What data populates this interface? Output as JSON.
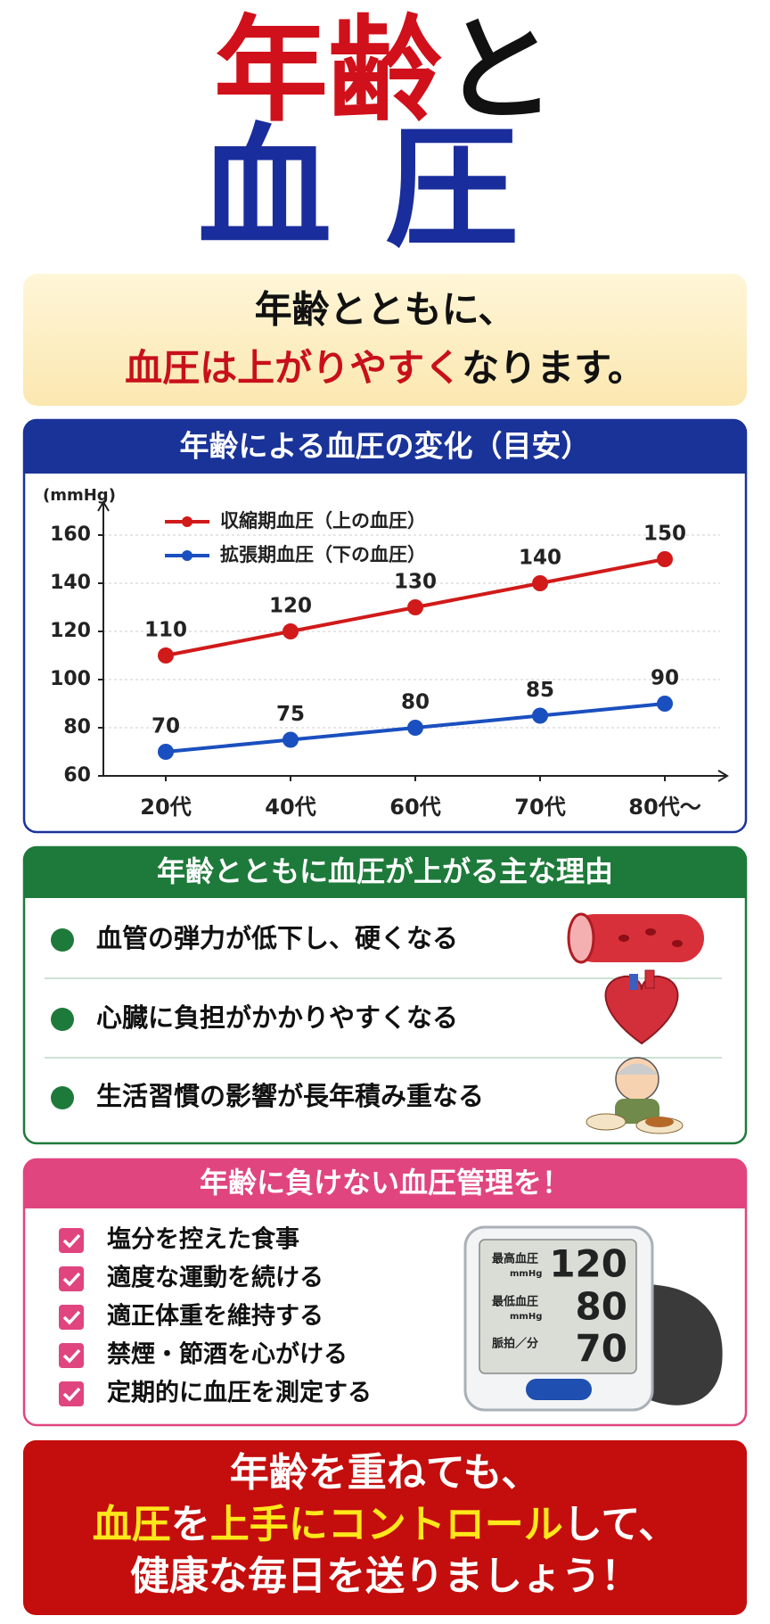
{
  "title": {
    "line1": [
      "年齢",
      "と"
    ],
    "line2": "血圧"
  },
  "headline": {
    "line1": "年齢とともに、",
    "line2": [
      "血圧は上がりやすく",
      "なります。"
    ]
  },
  "chart_data": {
    "type": "line",
    "title": "年齢による血圧の変化（目安）",
    "y_label": "(mmHg)",
    "categories": [
      "20代",
      "40代",
      "60代",
      "70代",
      "80代～"
    ],
    "series": [
      {
        "name": "収縮期血圧（上の血圧）",
        "color": "#d11a1a",
        "values": [
          110,
          120,
          130,
          140,
          150
        ]
      },
      {
        "name": "拡張期血圧（下の血圧）",
        "color": "#1a4fbf",
        "values": [
          70,
          75,
          80,
          85,
          90
        ]
      }
    ],
    "ylim": [
      60,
      170
    ],
    "yticks": [
      60,
      80,
      100,
      120,
      140,
      160
    ],
    "grid": true,
    "legend": "top-left"
  },
  "reasons": {
    "title": "年齢とともに血圧が上がる主な理由",
    "items": [
      "血管の弾力が低下し、硬くなる",
      "心臓に負担がかかりやすくなる",
      "生活習慣の影響が長年積み重なる"
    ]
  },
  "management": {
    "title": "年齢に負けない血圧管理を！",
    "items": [
      "塩分を控えた食事",
      "適度な運動を続ける",
      "適正体重を維持する",
      "禁煙・節酒を心がける",
      "定期的に血圧を測定する"
    ],
    "monitor": {
      "rows": [
        {
          "label": "最高血圧",
          "unit": "mmHg",
          "reading": "120"
        },
        {
          "label": "最低血圧",
          "unit": "mmHg",
          "reading": "80"
        },
        {
          "label": "脈拍／分",
          "reading": "70"
        }
      ]
    }
  },
  "closing": {
    "line1": "年齢を重ねても、",
    "line2": [
      "血圧",
      "を",
      "上手にコントロール",
      "して、"
    ],
    "line3": "健康な毎日を送りましょう！"
  }
}
